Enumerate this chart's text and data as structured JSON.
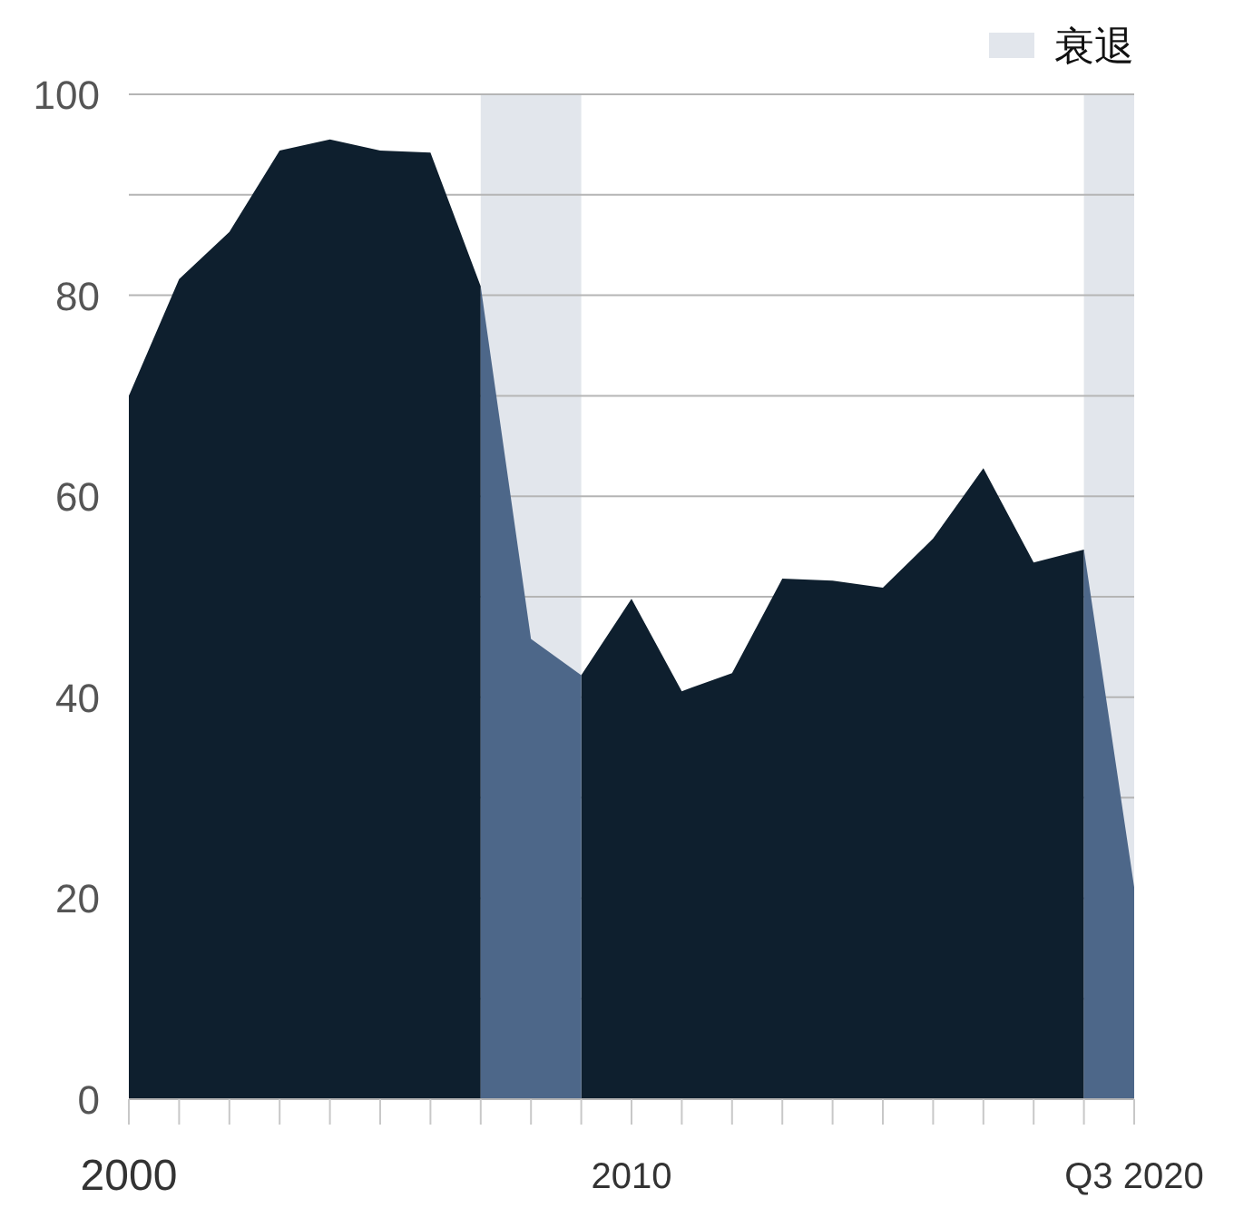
{
  "chart_data": {
    "type": "area",
    "x": [
      2000,
      2001,
      2002,
      2003,
      2004,
      2005,
      2006,
      2007,
      2008,
      2009,
      2010,
      2011,
      2012,
      2013,
      2014,
      2015,
      2016,
      2017,
      2018,
      2019,
      2020
    ],
    "series": [
      {
        "color": "#0e1f2e",
        "values": [
          70.0,
          81.6,
          86.3,
          94.4,
          95.5,
          94.4,
          94.2,
          80.9,
          null,
          42.2,
          49.8,
          40.6,
          42.4,
          51.8,
          51.6,
          50.9,
          55.8,
          62.8,
          53.4,
          54.7,
          null
        ]
      },
      {
        "color": "#4d6789",
        "values": [
          null,
          null,
          null,
          null,
          null,
          null,
          null,
          80.9,
          45.8,
          42.2,
          null,
          null,
          null,
          null,
          null,
          null,
          null,
          null,
          null,
          54.7,
          21.1
        ]
      }
    ],
    "bands": [
      {
        "axis": "x",
        "from": 2007,
        "to": 2009,
        "label": "衰退",
        "color": "#e2e6ec"
      },
      {
        "axis": "x",
        "from": 2019,
        "to": 2020,
        "color": "#e2e6ec"
      }
    ],
    "xlim": [
      2000,
      2020
    ],
    "xticks": [
      2000,
      {
        "value": 2001,
        "label": null
      },
      {
        "value": 2002,
        "label": null
      },
      {
        "value": 2003,
        "label": null
      },
      {
        "value": 2004,
        "label": null
      },
      {
        "value": 2005,
        "label": null
      },
      {
        "value": 2006,
        "label": null
      },
      {
        "value": 2007,
        "label": null
      },
      {
        "value": 2008,
        "label": null
      },
      {
        "value": 2009,
        "label": null
      },
      2010,
      {
        "value": 2011,
        "label": null
      },
      {
        "value": 2012,
        "label": null
      },
      {
        "value": 2013,
        "label": null
      },
      {
        "value": 2014,
        "label": null
      },
      {
        "value": 2015,
        "label": null
      },
      {
        "value": 2016,
        "label": null
      },
      {
        "value": 2017,
        "label": null
      },
      {
        "value": 2018,
        "label": null
      },
      {
        "value": 2019,
        "label": null
      },
      {
        "value": 2020,
        "label": "Q3 2020"
      }
    ],
    "ylim": [
      0,
      100
    ],
    "yticks": [
      0,
      {
        "value": 10,
        "label": null
      },
      20,
      {
        "value": 30,
        "label": null
      },
      40,
      {
        "value": 50,
        "label": null
      },
      60,
      {
        "value": 70,
        "label": null
      },
      80,
      {
        "value": 90,
        "label": null
      },
      100
    ],
    "grid": "y",
    "legend": "top right"
  }
}
